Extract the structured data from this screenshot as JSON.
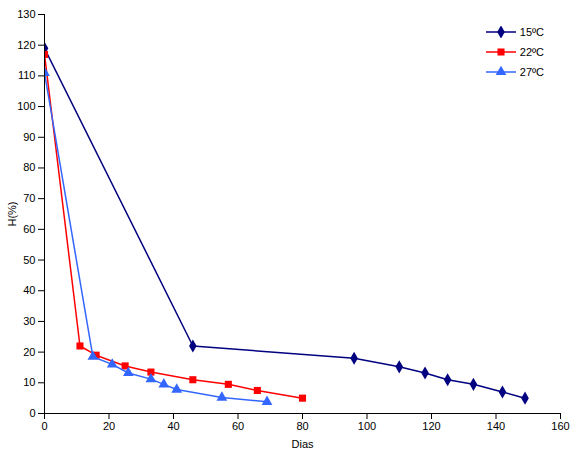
{
  "chart_data": {
    "type": "line",
    "x_label": "Dias",
    "y_label": "H(%)",
    "xlim": [
      0,
      160
    ],
    "ylim": [
      0,
      130
    ],
    "xticks": [
      0,
      20,
      40,
      60,
      80,
      100,
      120,
      140,
      160
    ],
    "yticks": [
      0,
      10,
      20,
      30,
      40,
      50,
      60,
      70,
      80,
      90,
      100,
      110,
      120,
      130
    ],
    "legend": "top-right",
    "series": [
      {
        "name": "15ºC",
        "color": "#000080",
        "marker": "diamond",
        "x": [
          0,
          46,
          96,
          110,
          118,
          125,
          133,
          142,
          149
        ],
        "values": [
          119,
          22,
          18,
          15.2,
          13.2,
          11,
          9.5,
          7,
          5
        ]
      },
      {
        "name": "22ºC",
        "color": "#ff0000",
        "marker": "square",
        "x": [
          0,
          11,
          16,
          25,
          33,
          46,
          57,
          66,
          80
        ],
        "values": [
          117,
          22,
          19,
          15.5,
          13.5,
          11,
          9.5,
          7.5,
          5
        ]
      },
      {
        "name": "27ºC",
        "color": "#3366ff",
        "marker": "triangle",
        "x": [
          0,
          15,
          21,
          26,
          33,
          37,
          41,
          55,
          69
        ],
        "values": [
          111,
          18.5,
          16,
          13.2,
          11.2,
          9.5,
          7.8,
          5.2,
          3.8
        ]
      }
    ]
  }
}
